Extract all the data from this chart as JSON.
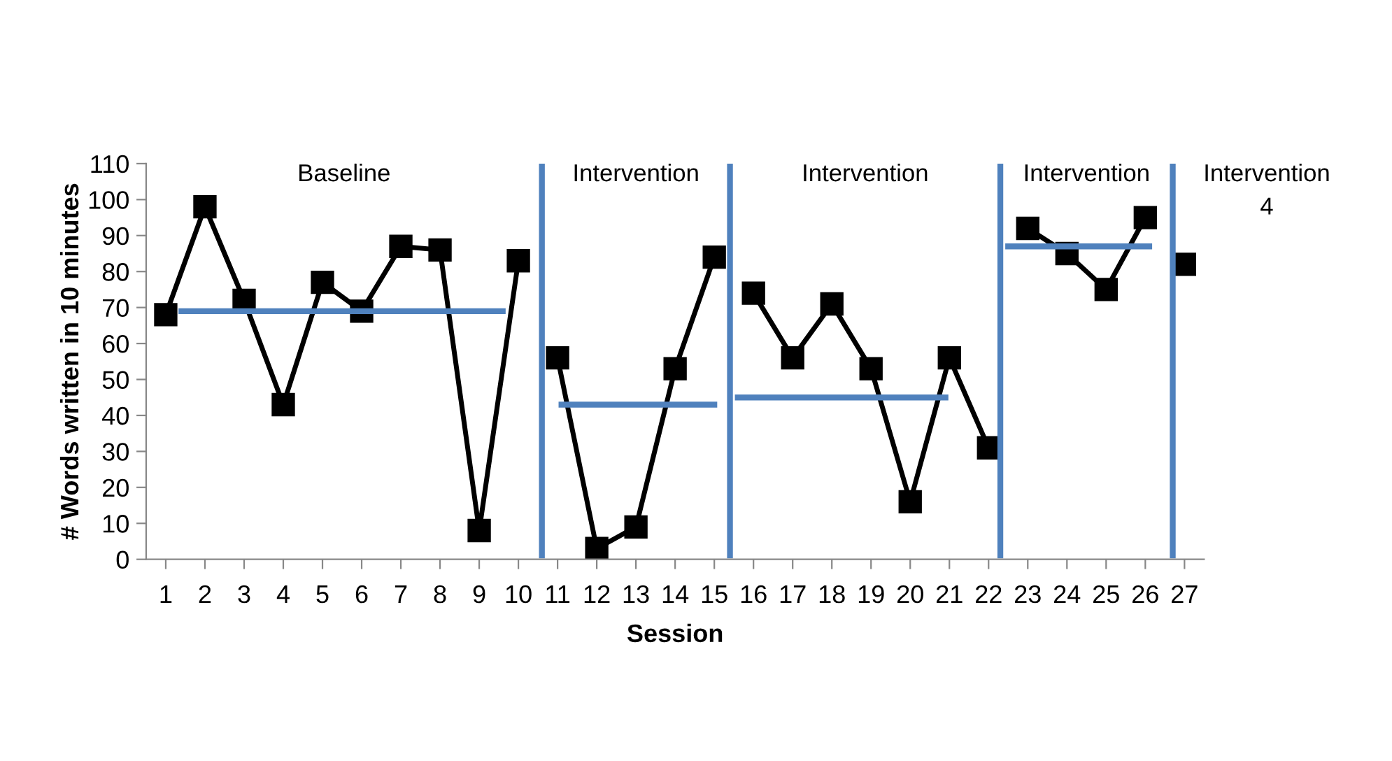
{
  "chart_data": {
    "type": "line",
    "xlabel": "Session",
    "ylabel": "# Words written in 10 minutes",
    "xlim": [
      0.5,
      27.5
    ],
    "xticks": [
      1,
      2,
      3,
      4,
      5,
      6,
      7,
      8,
      9,
      10,
      11,
      12,
      13,
      14,
      15,
      16,
      17,
      18,
      19,
      20,
      21,
      22,
      23,
      24,
      25,
      26,
      27
    ],
    "ylim": [
      0,
      110
    ],
    "yticks": [
      0,
      10,
      20,
      30,
      40,
      50,
      60,
      70,
      80,
      90,
      100,
      110
    ],
    "grid": false,
    "legend": false,
    "series": [
      {
        "color": "#000000",
        "marker": "square",
        "x": [
          1,
          2,
          3,
          4,
          5,
          6,
          7,
          8,
          9,
          10
        ],
        "values": [
          68,
          98,
          72,
          43,
          77,
          69,
          87,
          86,
          8,
          83
        ]
      },
      {
        "color": "#000000",
        "marker": "square",
        "x": [
          11,
          12,
          13,
          14,
          15
        ],
        "values": [
          56,
          3,
          9,
          53,
          84
        ]
      },
      {
        "color": "#000000",
        "marker": "square",
        "x": [
          16,
          17,
          18,
          19,
          20,
          21,
          22
        ],
        "values": [
          74,
          56,
          71,
          53,
          16,
          56,
          31
        ]
      },
      {
        "color": "#000000",
        "marker": "square",
        "x": [
          23,
          24,
          25,
          26
        ],
        "values": [
          92,
          85,
          75,
          95
        ]
      },
      {
        "color": "#000000",
        "marker": "square",
        "x": [
          27
        ],
        "values": [
          82
        ]
      },
      {
        "color": "#4f81bd",
        "marker": "none",
        "x": [
          1.4,
          9.6
        ],
        "values": [
          69,
          69
        ]
      },
      {
        "color": "#4f81bd",
        "marker": "none",
        "x": [
          11.1,
          15.0
        ],
        "values": [
          43,
          43
        ]
      },
      {
        "color": "#4f81bd",
        "marker": "none",
        "x": [
          15.6,
          20.9
        ],
        "values": [
          45,
          45
        ]
      },
      {
        "color": "#4f81bd",
        "marker": "none",
        "x": [
          22.5,
          26.1
        ],
        "values": [
          87,
          87
        ]
      }
    ],
    "ref_lines": [
      {
        "axis": "x",
        "value": 10.6,
        "color": "#4f81bd"
      },
      {
        "axis": "x",
        "value": 15.4,
        "color": "#4f81bd"
      },
      {
        "axis": "x",
        "value": 22.3,
        "color": "#4f81bd"
      },
      {
        "axis": "x",
        "value": 26.7,
        "color": "#4f81bd"
      }
    ],
    "annotations": [
      "Baseline",
      "Intervention",
      "Intervention",
      "Intervention",
      "Intervention\n4"
    ]
  }
}
